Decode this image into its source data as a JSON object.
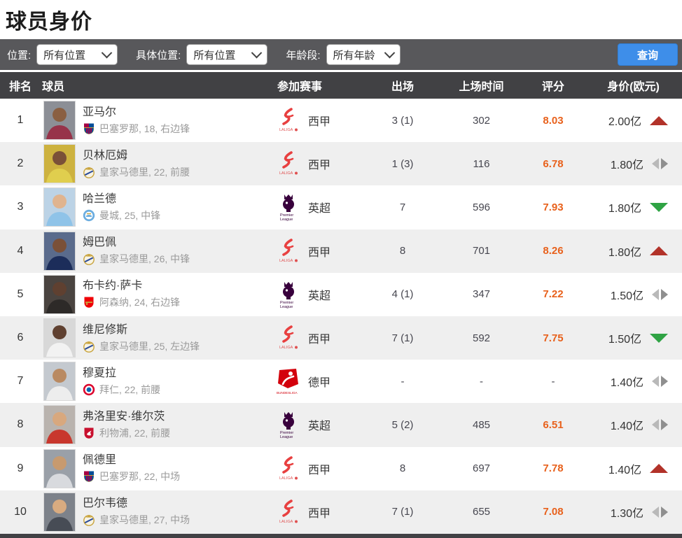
{
  "page": {
    "title": "球员身价"
  },
  "filters": {
    "position_label": "位置:",
    "position_value": "所有位置",
    "specific_position_label": "具体位置:",
    "specific_position_value": "所有位置",
    "age_label": "年龄段:",
    "age_value": "所有年龄",
    "search_button": "查询"
  },
  "icon_labels": {
    "laliga": "LALIGA",
    "premier_line1": "Premier",
    "premier_line2": "League",
    "bundesliga": "BUNDESLIGA"
  },
  "colors": {
    "rating_orange": "#e8611c",
    "trend_up_red": "#b23229",
    "trend_down_green": "#2fa344",
    "trend_flat_gray": "#9e9e9e",
    "button_blue": "#3e8ee9",
    "filterbar_gray": "#58585b",
    "header_gray": "#414144",
    "alt_row_gray": "#efefef"
  },
  "table": {
    "headers": {
      "rank": "排名",
      "player": "球员",
      "league": "参加赛事",
      "appearances": "出场",
      "minutes": "上场时间",
      "rating": "评分",
      "value": "身价(欧元)"
    },
    "rows": [
      {
        "rank": "1",
        "name": "亚马尔",
        "club_icon": "barcelona-crest",
        "club_info": "巴塞罗那, 18, 右边锋",
        "league_icon": "laliga",
        "league": "西甲",
        "appearances": "3 (1)",
        "minutes": "302",
        "rating": "8.03",
        "value": "2.00亿",
        "trend": "up",
        "photo": {
          "bg": "#8c8f96",
          "jersey": "#97334a",
          "skin": "#8a5f41"
        }
      },
      {
        "rank": "2",
        "name": "贝林厄姆",
        "club_icon": "real-madrid-crest",
        "club_info": "皇家马德里, 22, 前腰",
        "league_icon": "laliga",
        "league": "西甲",
        "appearances": "1 (3)",
        "minutes": "116",
        "rating": "6.78",
        "value": "1.80亿",
        "trend": "flat",
        "photo": {
          "bg": "#cdb23f",
          "jersey": "#e0ce4e",
          "skin": "#7a5038"
        }
      },
      {
        "rank": "3",
        "name": "哈兰德",
        "club_icon": "man-city-crest",
        "club_info": "曼城, 25, 中锋",
        "league_icon": "premier-league",
        "league": "英超",
        "appearances": "7",
        "minutes": "596",
        "rating": "7.93",
        "value": "1.80亿",
        "trend": "down",
        "photo": {
          "bg": "#bcd3e6",
          "jersey": "#8fc3e8",
          "skin": "#e0b48f"
        }
      },
      {
        "rank": "4",
        "name": "姆巴佩",
        "club_icon": "real-madrid-crest",
        "club_info": "皇家马德里, 26, 中锋",
        "league_icon": "laliga",
        "league": "西甲",
        "appearances": "8",
        "minutes": "701",
        "rating": "8.26",
        "value": "1.80亿",
        "trend": "up",
        "photo": {
          "bg": "#5a6b8c",
          "jersey": "#1c2d5a",
          "skin": "#7a5038"
        }
      },
      {
        "rank": "5",
        "name": "布卡约·萨卡",
        "club_icon": "arsenal-crest",
        "club_info": "阿森纳, 24, 右边锋",
        "league_icon": "premier-league",
        "league": "英超",
        "appearances": "4 (1)",
        "minutes": "347",
        "rating": "7.22",
        "value": "1.50亿",
        "trend": "flat",
        "photo": {
          "bg": "#4a4440",
          "jersey": "#2d2a28",
          "skin": "#5f4030"
        }
      },
      {
        "rank": "6",
        "name": "维尼修斯",
        "club_icon": "real-madrid-crest",
        "club_info": "皇家马德里, 25, 左边锋",
        "league_icon": "laliga",
        "league": "西甲",
        "appearances": "7 (1)",
        "minutes": "592",
        "rating": "7.75",
        "value": "1.50亿",
        "trend": "down",
        "photo": {
          "bg": "#d8d8d8",
          "jersey": "#f2f2f2",
          "skin": "#5f4030"
        }
      },
      {
        "rank": "7",
        "name": "穆夏拉",
        "club_icon": "bayern-crest",
        "club_info": "拜仁, 22, 前腰",
        "league_icon": "bundesliga",
        "league": "德甲",
        "appearances": "-",
        "minutes": "-",
        "rating": "-",
        "value": "1.40亿",
        "trend": "flat",
        "photo": {
          "bg": "#c4c9cf",
          "jersey": "#ededed",
          "skin": "#b98a62"
        }
      },
      {
        "rank": "8",
        "name": "弗洛里安·维尔茨",
        "club_icon": "liverpool-crest",
        "club_info": "利物浦, 22, 前腰",
        "league_icon": "premier-league",
        "league": "英超",
        "appearances": "5 (2)",
        "minutes": "485",
        "rating": "6.51",
        "value": "1.40亿",
        "trend": "flat",
        "photo": {
          "bg": "#b9b3ae",
          "jersey": "#c8372d",
          "skin": "#d8a87e"
        }
      },
      {
        "rank": "9",
        "name": "佩德里",
        "club_icon": "barcelona-crest",
        "club_info": "巴塞罗那, 22, 中场",
        "league_icon": "laliga",
        "league": "西甲",
        "appearances": "8",
        "minutes": "697",
        "rating": "7.78",
        "value": "1.40亿",
        "trend": "up",
        "photo": {
          "bg": "#9aa0a8",
          "jersey": "#d8dade",
          "skin": "#c79a6f"
        }
      },
      {
        "rank": "10",
        "name": "巴尔韦德",
        "club_icon": "real-madrid-crest",
        "club_info": "皇家马德里, 27, 中场",
        "league_icon": "laliga",
        "league": "西甲",
        "appearances": "7 (1)",
        "minutes": "655",
        "rating": "7.08",
        "value": "1.30亿",
        "trend": "flat",
        "photo": {
          "bg": "#7d828a",
          "jersey": "#474c55",
          "skin": "#d8ab80"
        }
      }
    ]
  }
}
